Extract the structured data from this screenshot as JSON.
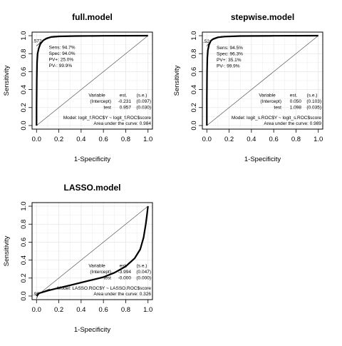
{
  "chart_data": [
    {
      "type": "line",
      "title": "full.model",
      "xlabel": "1-Specificity",
      "ylabel": "Sensitivity",
      "xlim": [
        0,
        1
      ],
      "ylim": [
        0,
        1
      ],
      "xticks": [
        "0.0",
        "0.2",
        "0.4",
        "0.6",
        "0.8",
        "1.0"
      ],
      "yticks": [
        "0.0",
        "0.2",
        "0.4",
        "0.6",
        "0.8",
        "1.0"
      ],
      "grid": true,
      "diagonal": true,
      "cutoff_label": ".572",
      "cutoff_point": [
        0.06,
        0.947
      ],
      "stats_lines": [
        "Sens: 94.7%",
        "Spec: 94.0%",
        "PV+: 25.0%",
        "PV-: 99.9%"
      ],
      "coef_table": {
        "header": [
          "Variable",
          "est.",
          "(s.e.)"
        ],
        "rows": [
          [
            "(Intercept)",
            "-0.231",
            "(0.097)"
          ],
          [
            "test",
            "0.957",
            "(0.030)"
          ]
        ]
      },
      "model_text": "Model:  logit_f.ROC$Y ~ logit_f.ROC$score",
      "auc_text": "Area under the curve: 0.984",
      "series": [
        {
          "values": [
            [
              0,
              0
            ],
            [
              0,
              0.2
            ],
            [
              0.002,
              0.5
            ],
            [
              0.005,
              0.7
            ],
            [
              0.01,
              0.8
            ],
            [
              0.02,
              0.86
            ],
            [
              0.035,
              0.91
            ],
            [
              0.06,
              0.947
            ],
            [
              0.09,
              0.97
            ],
            [
              0.13,
              0.985
            ],
            [
              0.2,
              0.992
            ],
            [
              0.35,
              0.996
            ],
            [
              0.6,
              0.999
            ],
            [
              1,
              1
            ]
          ]
        }
      ]
    },
    {
      "type": "line",
      "title": "stepwise.model",
      "xlabel": "1-Specificity",
      "ylabel": "Sensitivity",
      "xlim": [
        0,
        1
      ],
      "ylim": [
        0,
        1
      ],
      "xticks": [
        "0.0",
        "0.2",
        "0.4",
        "0.6",
        "0.8",
        "1.0"
      ],
      "yticks": [
        "0.0",
        "0.2",
        "0.4",
        "0.6",
        "0.8",
        "1.0"
      ],
      "grid": true,
      "diagonal": true,
      "cutoff_label": ".52",
      "cutoff_point": [
        0.037,
        0.945
      ],
      "stats_lines": [
        "Sens: 94.5%",
        "Spec: 96.3%",
        "PV+: 35.1%",
        "PV-: 99.9%"
      ],
      "coef_table": {
        "header": [
          "Variable",
          "est.",
          "(s.e.)"
        ],
        "rows": [
          [
            "(Intercept)",
            "0.050",
            "(0.103)"
          ],
          [
            "test",
            "1.098",
            "(0.035)"
          ]
        ]
      },
      "model_text": "Model:  logit_s.ROC$Y ~ logit_s.ROC$score",
      "auc_text": "Area under the curve: 0.989",
      "series": [
        {
          "values": [
            [
              0,
              0
            ],
            [
              0,
              0.3
            ],
            [
              0.002,
              0.6
            ],
            [
              0.005,
              0.75
            ],
            [
              0.01,
              0.84
            ],
            [
              0.02,
              0.9
            ],
            [
              0.037,
              0.945
            ],
            [
              0.06,
              0.965
            ],
            [
              0.1,
              0.982
            ],
            [
              0.16,
              0.99
            ],
            [
              0.3,
              0.996
            ],
            [
              0.6,
              0.999
            ],
            [
              1,
              1
            ]
          ]
        }
      ]
    },
    {
      "type": "line",
      "title": "LASSO.model",
      "xlabel": "1-Specificity",
      "ylabel": "Sensitivity",
      "xlim": [
        0,
        1
      ],
      "ylim": [
        0,
        1
      ],
      "xticks": [
        "0.0",
        "0.2",
        "0.4",
        "0.6",
        "0.8",
        "1.0"
      ],
      "yticks": [
        "0.0",
        "0.2",
        "0.4",
        "0.6",
        "0.8",
        "1.0"
      ],
      "grid": true,
      "diagonal": true,
      "cutoff_label": ".96",
      "cutoff_point": [
        0.02,
        0.03
      ],
      "stats_lines": [],
      "coef_table": {
        "header": [
          "Variable",
          "est.",
          "(s.e.)"
        ],
        "rows": [
          [
            "(Intercept)",
            "-3.994",
            "(0.047)"
          ],
          [
            "test",
            "-0.000",
            "(0.000)"
          ]
        ]
      },
      "model_text": "Model:  LASSO.ROC$Y ~ LASSO.ROC$score",
      "auc_text": "Area under the curve: 0.326",
      "series": [
        {
          "values": [
            [
              0,
              0
            ],
            [
              0.02,
              0.03
            ],
            [
              0.1,
              0.06
            ],
            [
              0.2,
              0.09
            ],
            [
              0.3,
              0.12
            ],
            [
              0.4,
              0.15
            ],
            [
              0.5,
              0.18
            ],
            [
              0.6,
              0.21
            ],
            [
              0.7,
              0.26
            ],
            [
              0.8,
              0.33
            ],
            [
              0.88,
              0.42
            ],
            [
              0.93,
              0.52
            ],
            [
              0.96,
              0.65
            ],
            [
              0.98,
              0.8
            ],
            [
              0.99,
              0.9
            ],
            [
              1,
              1
            ]
          ]
        }
      ]
    }
  ]
}
